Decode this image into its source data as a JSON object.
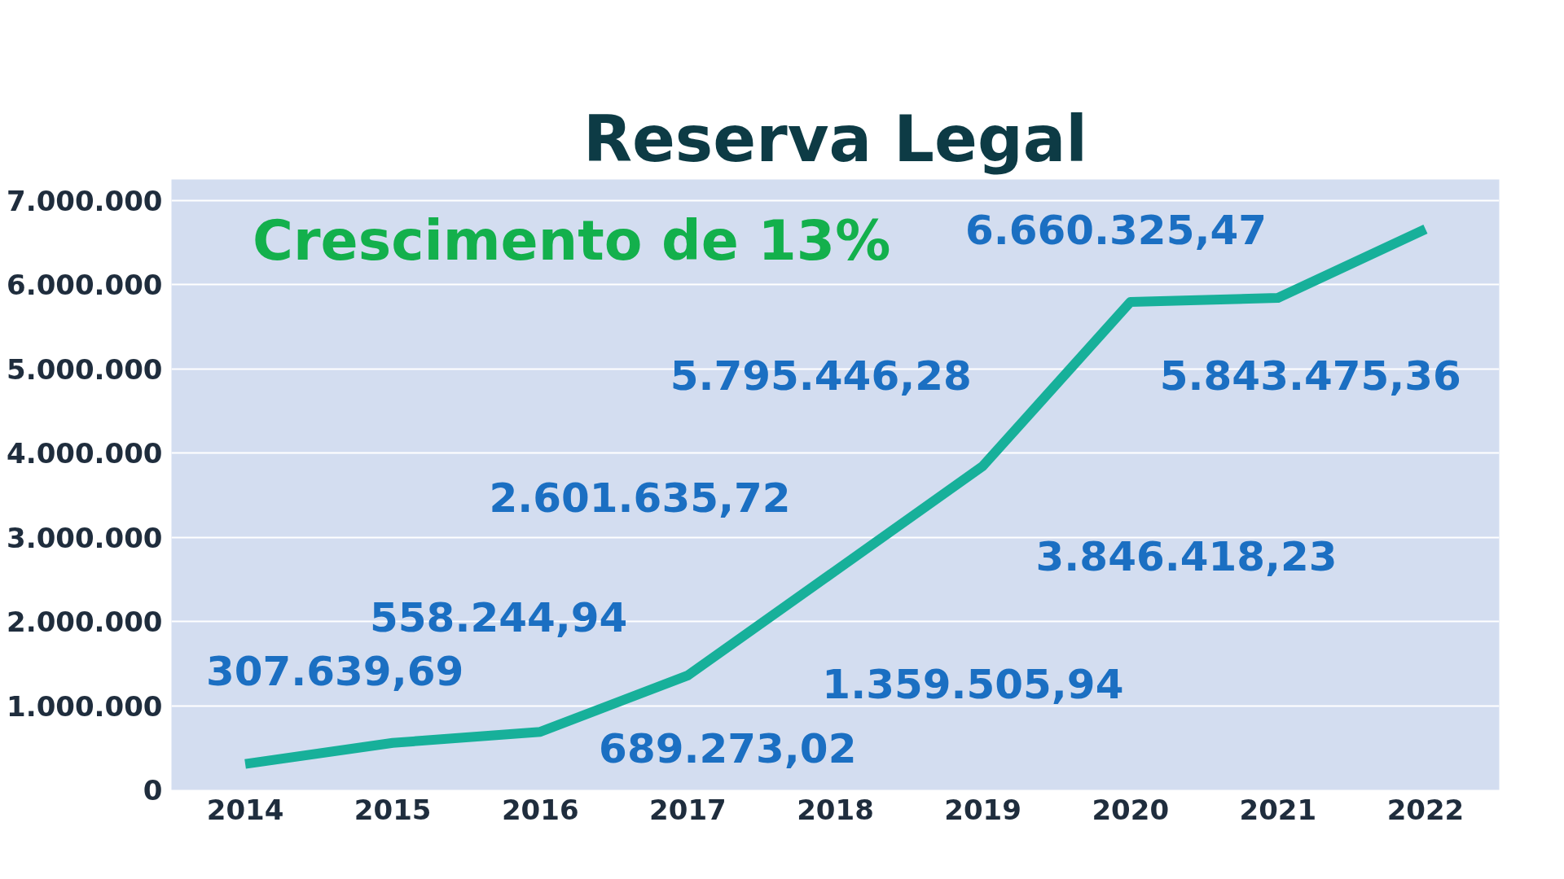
{
  "chart_data": {
    "type": "line",
    "title": "Reserva Legal",
    "categories": [
      "2014",
      "2015",
      "2016",
      "2017",
      "2018",
      "2019",
      "2020",
      "2021",
      "2022"
    ],
    "series": [
      {
        "color": "#17b09a",
        "values": [
          307639.69,
          558244.94,
          689273.02,
          1359505.94,
          2601635.72,
          3846418.23,
          5795446.28,
          5843475.36,
          6660325.47
        ]
      }
    ],
    "value_labels": [
      "307.639,69",
      "558.244,94",
      "689.273,02",
      "1.359.505,94",
      "2.601.635,72",
      "3.846.418,23",
      "5.795.446,28",
      "5.843.475,36",
      "6.660.325,47"
    ],
    "ylim": [
      0,
      7250000
    ],
    "yticks": [
      {
        "value": 0,
        "label": "0"
      },
      {
        "value": 1000000,
        "label": "1.000.000"
      },
      {
        "value": 2000000,
        "label": "2.000.000"
      },
      {
        "value": 3000000,
        "label": "3.000.000"
      },
      {
        "value": 4000000,
        "label": "4.000.000"
      },
      {
        "value": 5000000,
        "label": "5.000.000"
      },
      {
        "value": 6000000,
        "label": "6.000.000"
      },
      {
        "value": 7000000,
        "label": "7.000.000"
      }
    ],
    "grid": "y",
    "marker": "none",
    "line_style": "solid",
    "annotations": [
      "Crescimento de 13%"
    ]
  }
}
